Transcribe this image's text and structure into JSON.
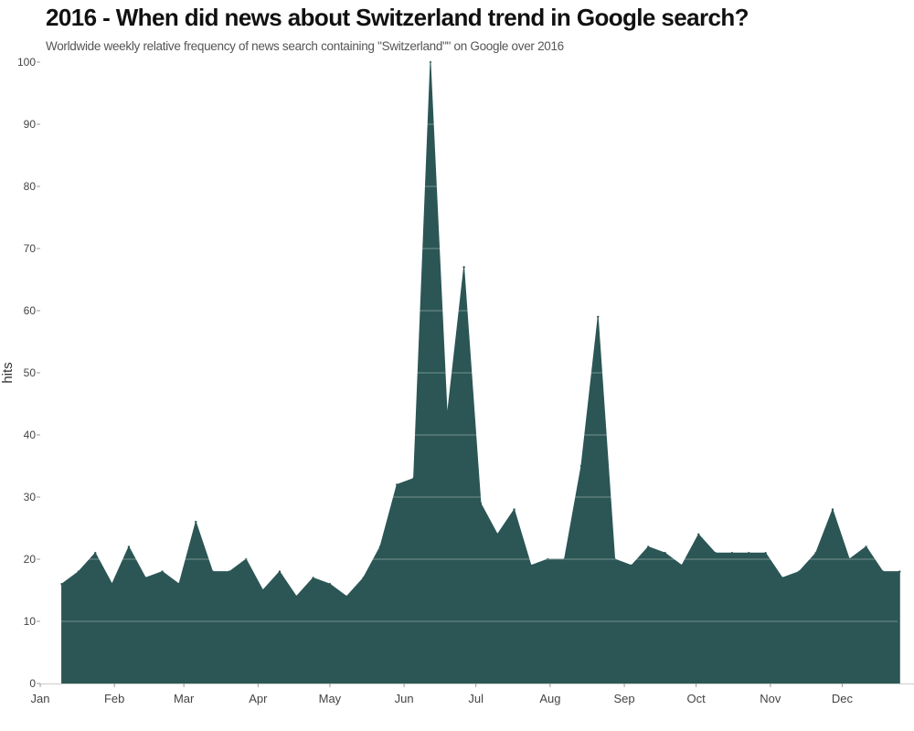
{
  "chart_data": {
    "type": "area",
    "title": "2016 - When did news about Switzerland trend in Google search?",
    "subtitle": "Worldwide weekly relative frequency of news search containing \"Switzerland\"\" on Google over 2016",
    "xlabel": "",
    "ylabel": "hits",
    "xlim": [
      "2016-01-01",
      "2016-12-31"
    ],
    "ylim": [
      0,
      100
    ],
    "yticks": [
      0,
      10,
      20,
      30,
      40,
      50,
      60,
      70,
      80,
      90,
      100
    ],
    "xticks": [
      {
        "label": "Jan",
        "date": "2016-01-01"
      },
      {
        "label": "Feb",
        "date": "2016-02-01"
      },
      {
        "label": "Mar",
        "date": "2016-03-01"
      },
      {
        "label": "Apr",
        "date": "2016-04-01"
      },
      {
        "label": "May",
        "date": "2016-05-01"
      },
      {
        "label": "Jun",
        "date": "2016-06-01"
      },
      {
        "label": "Jul",
        "date": "2016-07-01"
      },
      {
        "label": "Aug",
        "date": "2016-08-01"
      },
      {
        "label": "Sep",
        "date": "2016-09-01"
      },
      {
        "label": "Oct",
        "date": "2016-10-01"
      },
      {
        "label": "Nov",
        "date": "2016-11-01"
      },
      {
        "label": "Dec",
        "date": "2016-12-01"
      }
    ],
    "grid": true,
    "color": "#2b5655",
    "series": [
      {
        "x": [
          "2016-01-10",
          "2016-01-17",
          "2016-01-24",
          "2016-01-31",
          "2016-02-07",
          "2016-02-14",
          "2016-02-21",
          "2016-02-28",
          "2016-03-06",
          "2016-03-13",
          "2016-03-20",
          "2016-03-27",
          "2016-04-03",
          "2016-04-10",
          "2016-04-17",
          "2016-04-24",
          "2016-05-01",
          "2016-05-08",
          "2016-05-15",
          "2016-05-22",
          "2016-05-29",
          "2016-06-05",
          "2016-06-12",
          "2016-06-19",
          "2016-06-26",
          "2016-07-03",
          "2016-07-10",
          "2016-07-17",
          "2016-07-24",
          "2016-07-31",
          "2016-08-07",
          "2016-08-14",
          "2016-08-21",
          "2016-08-28",
          "2016-09-04",
          "2016-09-11",
          "2016-09-18",
          "2016-09-25",
          "2016-10-02",
          "2016-10-09",
          "2016-10-16",
          "2016-10-23",
          "2016-10-30",
          "2016-11-06",
          "2016-11-13",
          "2016-11-20",
          "2016-11-27",
          "2016-12-04",
          "2016-12-11",
          "2016-12-18",
          "2016-12-25"
        ],
        "values": [
          16,
          18,
          21,
          16,
          22,
          17,
          18,
          16,
          26,
          18,
          18,
          20,
          15,
          18,
          14,
          17,
          16,
          14,
          17,
          22,
          32,
          33,
          100,
          43,
          67,
          29,
          24,
          28,
          19,
          20,
          20,
          35,
          59,
          20,
          19,
          22,
          21,
          19,
          24,
          21,
          21,
          21,
          21,
          17,
          18,
          21,
          28,
          20,
          22,
          18,
          18
        ]
      }
    ]
  }
}
